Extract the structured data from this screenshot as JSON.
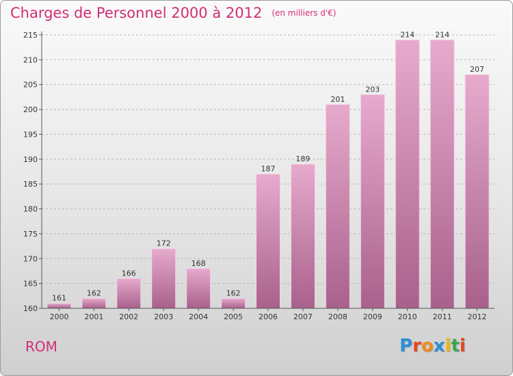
{
  "header": {
    "title": "Charges de Personnel 2000 à 2012",
    "subtitle": "(en milliers d'€)"
  },
  "footer": {
    "commune": "ROM",
    "brand": "Proxiti",
    "brand_colors": [
      "#2f8fd6",
      "#e8431f",
      "#f08a1c",
      "#2f8fd6",
      "#f2b705",
      "#3da64a",
      "#e8431f"
    ]
  },
  "colors": {
    "title": "#d12d75",
    "bar_top": "#e7aacd",
    "bar_bottom": "#a8618b",
    "axis": "#555555",
    "grid": "#b8b8b8"
  },
  "chart_data": {
    "type": "bar",
    "title": "Charges de Personnel 2000 à 2012",
    "subtitle": "(en milliers d'€)",
    "xlabel": "",
    "ylabel": "",
    "categories": [
      "2000",
      "2001",
      "2002",
      "2003",
      "2004",
      "2005",
      "2006",
      "2007",
      "2008",
      "2009",
      "2010",
      "2011",
      "2012"
    ],
    "values": [
      161,
      162,
      166,
      172,
      168,
      162,
      187,
      189,
      201,
      203,
      214,
      214,
      207
    ],
    "ylim": [
      160,
      215
    ],
    "yticks": [
      160,
      165,
      170,
      175,
      180,
      185,
      190,
      195,
      200,
      205,
      210,
      215
    ],
    "grid": true,
    "legend": "none"
  }
}
